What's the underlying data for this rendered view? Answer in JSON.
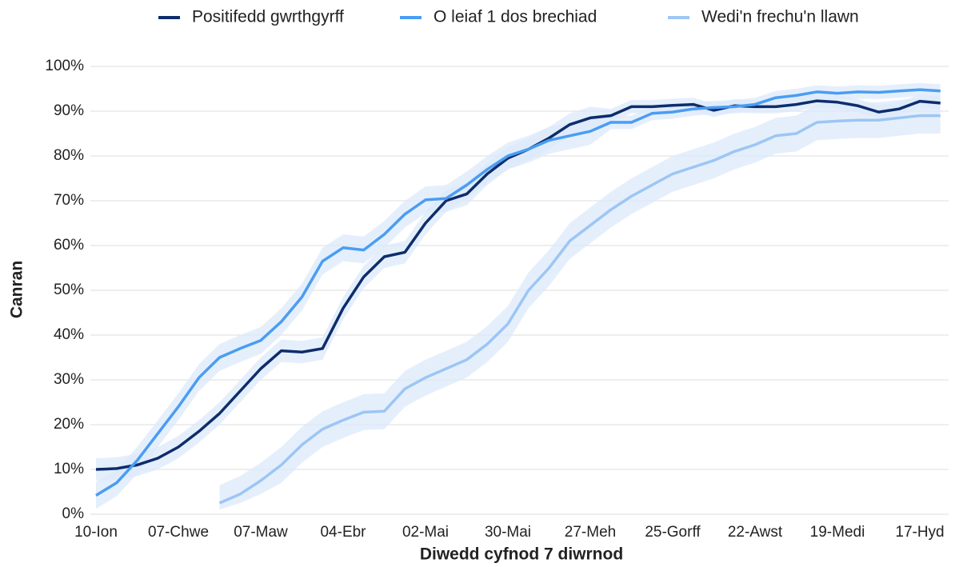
{
  "chart_data": {
    "type": "line",
    "x_label": "Diwedd cyfnod 7 diwrnod",
    "y_label": "Canran",
    "categories": [
      "10-Ion",
      null,
      null,
      null,
      "07-Chwe",
      null,
      null,
      null,
      "07-Maw",
      null,
      null,
      null,
      "04-Ebr",
      null,
      null,
      null,
      "02-Mai",
      null,
      null,
      null,
      "30-Mai",
      null,
      null,
      null,
      "27-Meh",
      null,
      null,
      null,
      "25-Gorff",
      null,
      null,
      null,
      "22-Awst",
      null,
      null,
      null,
      "19-Medi",
      null,
      null,
      null,
      "17-Hyd",
      null
    ],
    "ylim": [
      0,
      100
    ],
    "yticks": [
      {
        "value": 0,
        "label": "0%"
      },
      {
        "value": 10,
        "label": "10%"
      },
      {
        "value": 20,
        "label": "20%"
      },
      {
        "value": 30,
        "label": "30%"
      },
      {
        "value": 40,
        "label": "40%"
      },
      {
        "value": 50,
        "label": "50%"
      },
      {
        "value": 60,
        "label": "60%"
      },
      {
        "value": 70,
        "label": "70%"
      },
      {
        "value": 80,
        "label": "80%"
      },
      {
        "value": 90,
        "label": "90%"
      },
      {
        "value": 100,
        "label": "100%"
      }
    ],
    "grid": true,
    "legend": "top",
    "band_color": "#dce9fb",
    "series": [
      {
        "name": "Positifedd gwrthgyrff",
        "color": "#0d2d6c",
        "values": [
          10,
          10.2,
          11,
          12.5,
          15,
          18.5,
          22.5,
          27.5,
          32.5,
          36.5,
          36.2,
          37,
          46,
          53,
          57.5,
          58.5,
          65,
          70,
          71.5,
          76,
          79.5,
          81.5,
          84,
          87,
          88.5,
          89,
          91,
          91,
          91.3,
          91.5,
          90.2,
          91.2,
          91,
          91,
          91.5,
          92.3,
          92,
          91.2,
          89.8,
          90.5,
          92.2,
          91.8
        ],
        "upper": [
          12.5,
          12.7,
          13.5,
          15,
          17.5,
          21,
          25,
          30,
          35,
          39,
          38.7,
          39.5,
          48.5,
          55.5,
          60,
          61,
          67.5,
          72.5,
          74,
          78.5,
          82,
          84,
          86.5,
          89.5,
          91,
          90.5,
          92.5,
          92.5,
          92.8,
          93,
          91.7,
          92.7,
          92.5,
          92.5,
          93,
          93.8,
          93.5,
          92.7,
          91.3,
          92,
          93.7,
          93.3
        ],
        "lower": [
          7.5,
          7.7,
          8.5,
          10,
          12.5,
          16,
          20,
          25,
          30,
          34,
          33.7,
          34.5,
          43.5,
          50.5,
          55,
          56,
          62.5,
          67.5,
          69,
          73.5,
          77,
          79,
          81.5,
          84.5,
          86,
          87.5,
          89.5,
          89.5,
          89.8,
          90,
          88.7,
          89.7,
          89.5,
          89.5,
          90,
          90.8,
          90.5,
          89.7,
          88.3,
          89,
          90.7,
          90.3
        ]
      },
      {
        "name": "O leiaf 1 dos brechiad",
        "color": "#4a9df2",
        "values": [
          4.2,
          7,
          12,
          18,
          24,
          30.5,
          35,
          37,
          38.8,
          43,
          48.5,
          56.5,
          59.5,
          59,
          62.5,
          67,
          70.2,
          70.5,
          73.5,
          77,
          80,
          81.5,
          83.5,
          84.5,
          85.5,
          87.5,
          87.5,
          89.5,
          89.8,
          90.5,
          90.8,
          91,
          91.5,
          93,
          93.5,
          94.3,
          94,
          94.3,
          94.2,
          94.5,
          94.8,
          94.5
        ],
        "upper": [
          7.2,
          10,
          15,
          21,
          27,
          33.5,
          38,
          40,
          41.8,
          46,
          51.5,
          59.5,
          62.5,
          62,
          65.5,
          70,
          73.2,
          73.5,
          76.5,
          80,
          83,
          84.5,
          86.5,
          87.5,
          88.5,
          89,
          89,
          91,
          91.3,
          92,
          92.3,
          92.5,
          93,
          94.5,
          95,
          95.8,
          95.5,
          95.8,
          95.7,
          96,
          96.3,
          96
        ],
        "lower": [
          1.2,
          4,
          9,
          15,
          21,
          27.5,
          32,
          34,
          35.8,
          40,
          45.5,
          53.5,
          56.5,
          56,
          59.5,
          64,
          67.2,
          67.5,
          70.5,
          74,
          77,
          78.5,
          80.5,
          81.5,
          82.5,
          86,
          86,
          88,
          88.3,
          89,
          89.3,
          89.5,
          90,
          91.5,
          92,
          92.8,
          92.5,
          92.8,
          92.7,
          93,
          93.3,
          93
        ]
      },
      {
        "name": "Wedi'n frechu'n llawn",
        "color": "#9cc6f4",
        "values": [
          null,
          null,
          null,
          null,
          null,
          null,
          2.5,
          4.5,
          7.5,
          11,
          15.5,
          19,
          21,
          22.8,
          23,
          28,
          30.5,
          32.5,
          34.5,
          38,
          42.5,
          50,
          55,
          61,
          64.5,
          68,
          71,
          73.5,
          76,
          77.5,
          79,
          81,
          82.5,
          84.5,
          85,
          87.5,
          87.8,
          88,
          88,
          88.5,
          89,
          89
        ],
        "upper": [
          null,
          null,
          null,
          null,
          null,
          null,
          6.5,
          8.5,
          11.5,
          15,
          19.5,
          23,
          25,
          26.8,
          27,
          32,
          34.5,
          36.5,
          38.5,
          42,
          46.5,
          54,
          59,
          65,
          68.5,
          72,
          75,
          77.5,
          80,
          81.5,
          83,
          85,
          86.5,
          88.5,
          89,
          91.5,
          91.8,
          92,
          92,
          92.5,
          93,
          93
        ],
        "lower": [
          null,
          null,
          null,
          null,
          null,
          null,
          1,
          2.5,
          4.5,
          7,
          11.5,
          15,
          17,
          18.8,
          19,
          24,
          26.5,
          28.5,
          30.5,
          34,
          38.5,
          46,
          51,
          57,
          60.5,
          64,
          67,
          69.5,
          72,
          73.5,
          75,
          77,
          78.5,
          80.5,
          81,
          83.5,
          83.8,
          84,
          84,
          84.5,
          85,
          85
        ]
      }
    ]
  }
}
